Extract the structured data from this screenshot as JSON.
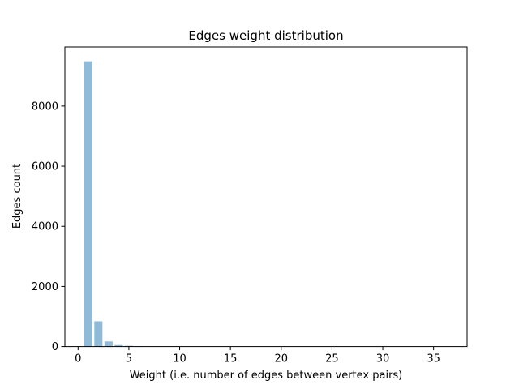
{
  "chart_data": {
    "type": "bar",
    "title": "Edges weight distribution",
    "xlabel": "Weight (i.e. number of edges between vertex pairs)",
    "ylabel": "Edges count",
    "x": [
      1,
      2,
      3,
      4,
      5,
      6,
      7,
      8,
      9,
      10,
      11,
      12,
      13,
      14,
      15,
      16,
      17,
      18,
      19,
      20,
      21,
      22,
      23,
      24,
      25,
      26,
      27,
      28,
      29,
      30,
      31,
      32,
      33,
      34,
      35,
      36
    ],
    "values": [
      9490,
      840,
      170,
      50,
      25,
      12,
      8,
      6,
      5,
      4,
      3,
      3,
      2,
      2,
      2,
      2,
      1,
      1,
      1,
      1,
      1,
      1,
      1,
      1,
      1,
      1,
      1,
      1,
      1,
      1,
      1,
      1,
      1,
      1,
      1,
      1
    ],
    "xlim": [
      -1.3,
      38.3
    ],
    "ylim": [
      0,
      9965
    ],
    "xticks": [
      0,
      5,
      10,
      15,
      20,
      25,
      30,
      35
    ],
    "yticks": [
      0,
      2000,
      4000,
      6000,
      8000
    ],
    "bar_color": "#1f77b4",
    "bar_alpha": 0.5,
    "grid": false,
    "legend": "none"
  }
}
